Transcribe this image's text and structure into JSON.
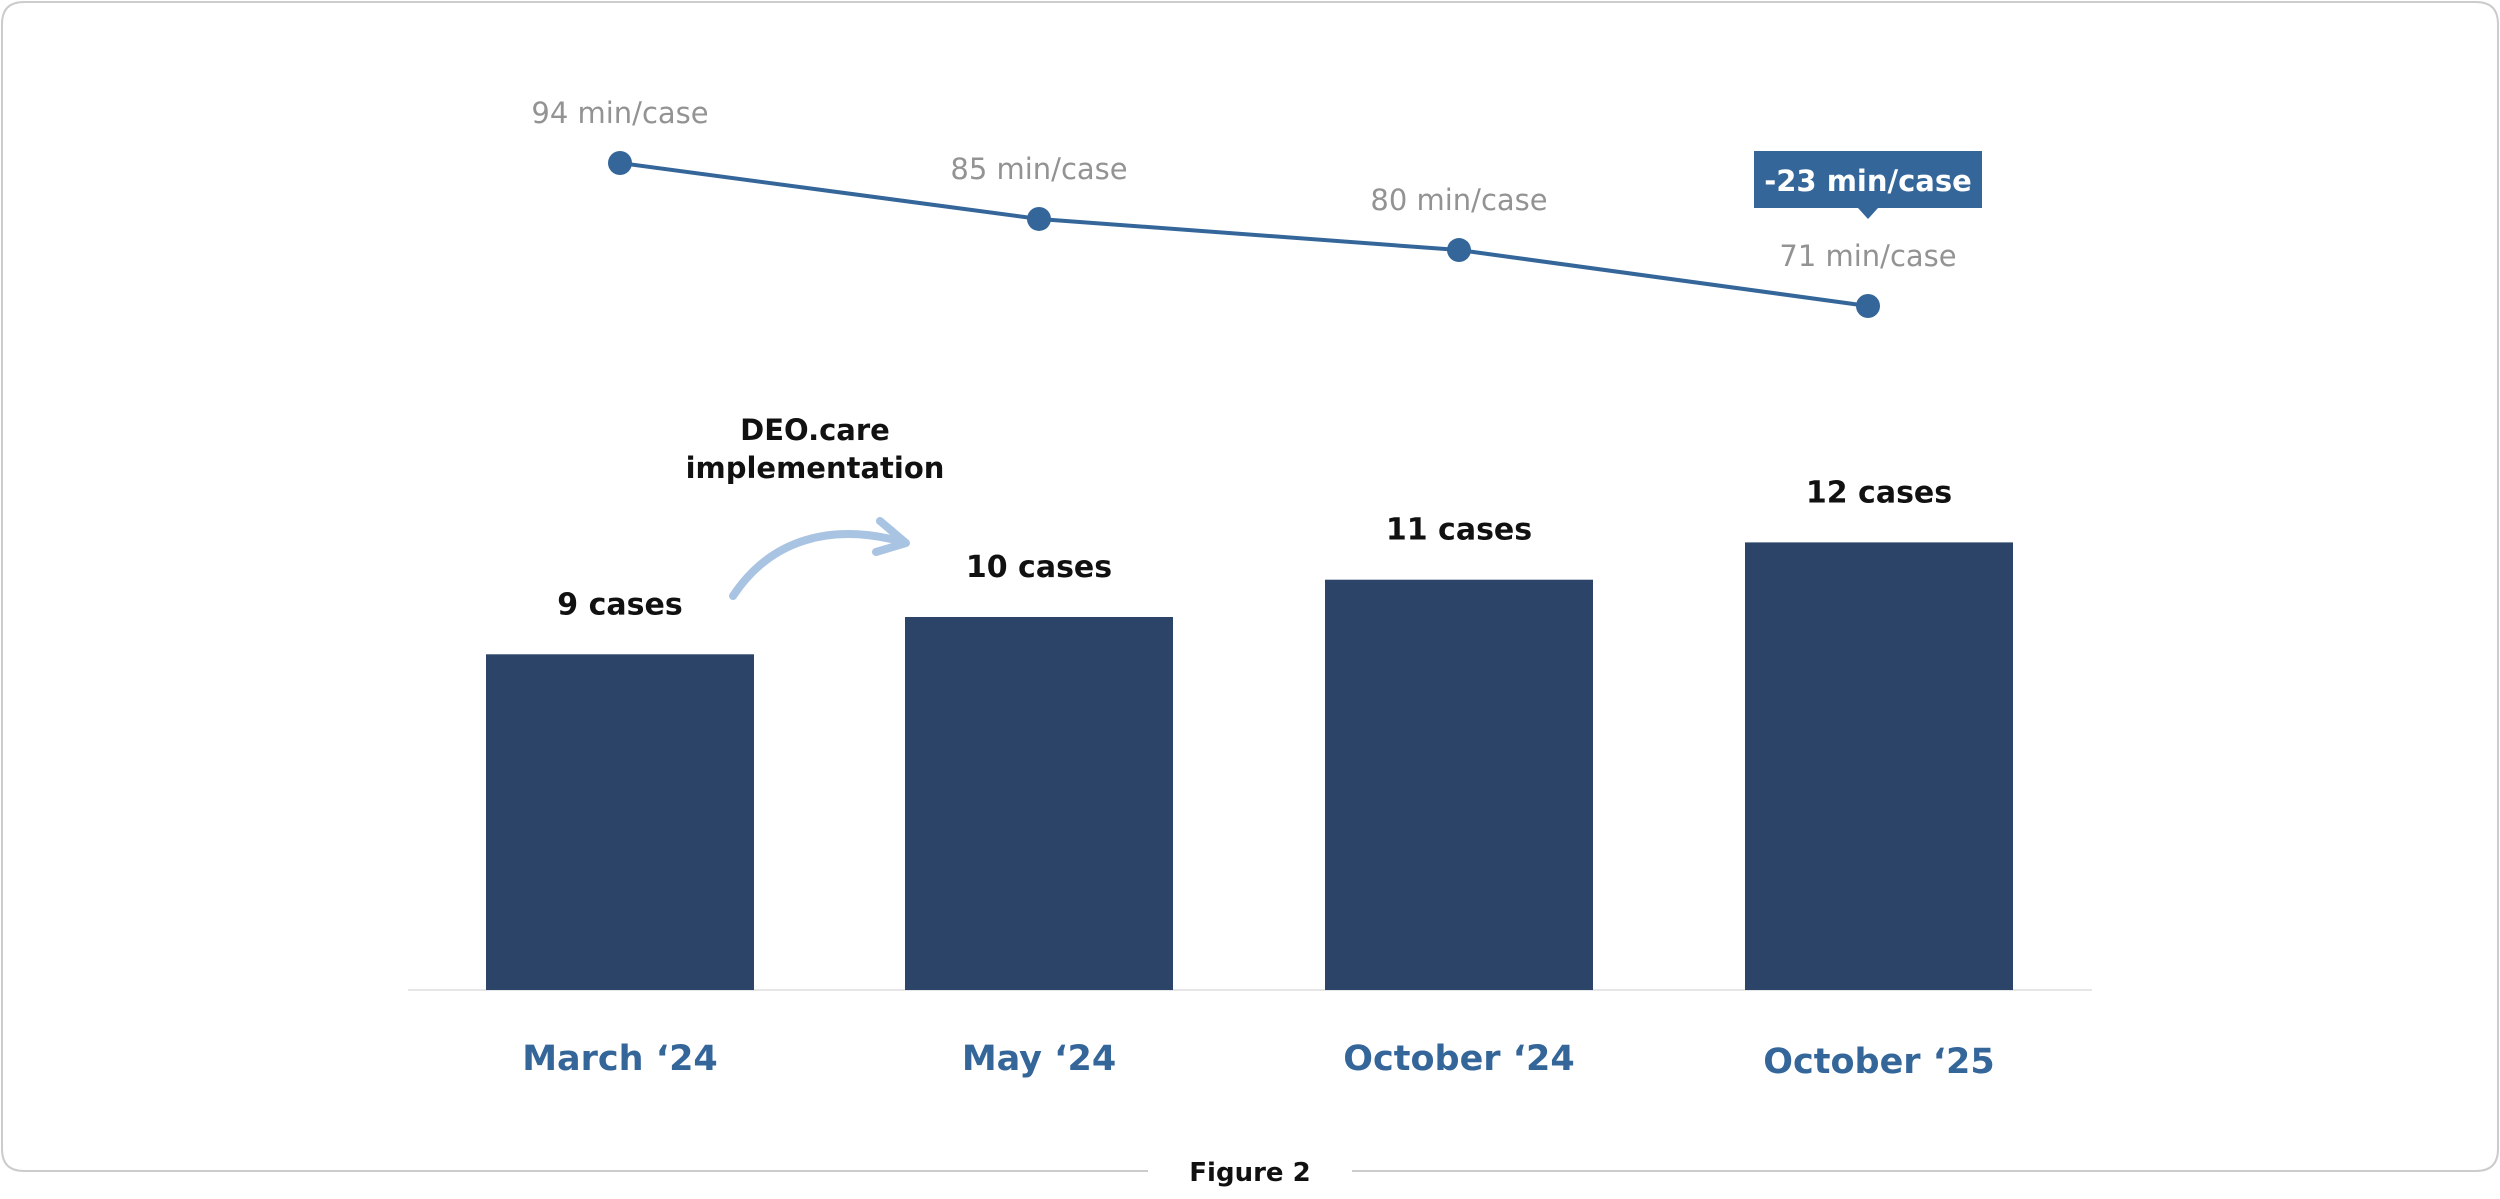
{
  "chart_data": {
    "type": "bar",
    "categories": [
      "March ‘24",
      "May ‘24",
      "October ‘24",
      "October ‘25"
    ],
    "series": [
      {
        "name": "cases",
        "kind": "bar",
        "values": [
          9,
          10,
          11,
          12
        ],
        "labels": [
          "9 cases",
          "10 cases",
          "11 cases",
          "12 cases"
        ]
      },
      {
        "name": "min/case",
        "kind": "line",
        "values": [
          94,
          85,
          80,
          71
        ],
        "labels": [
          "94 min/case",
          "85 min/case",
          "80 min/case",
          "71 min/case"
        ]
      }
    ],
    "annotations": {
      "implementation": [
        "DEO.care",
        "implementation"
      ],
      "callout": "-23 min/case"
    },
    "caption": "Figure 2",
    "colors": {
      "bar": "#2b4468",
      "line": "#34669a",
      "category": "#34669a",
      "line_label": "#939393",
      "callout_bg": "#34669a",
      "arrow": "#a9c4e2",
      "frame": "#cccccc",
      "baseline": "#e6e6e6"
    }
  }
}
